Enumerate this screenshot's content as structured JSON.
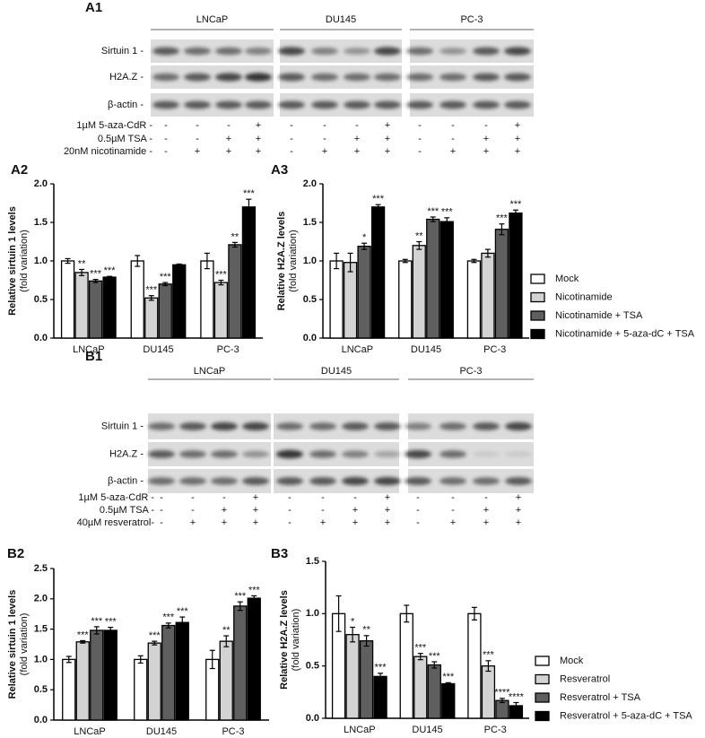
{
  "blots": [
    {
      "panel": "A1",
      "groups": [
        "LNCaP",
        "DU145",
        "PC-3"
      ],
      "bands": [
        "Sirtuin 1 -",
        "H2A.Z -",
        "β-actin -"
      ],
      "treatments": [
        {
          "label": "1µM 5-aza-CdR -",
          "signs": [
            "-",
            "-",
            "-",
            "+",
            "-",
            "-",
            "-",
            "+",
            "-",
            "-",
            "-",
            "+"
          ]
        },
        {
          "label": "0.5µM TSA -",
          "signs": [
            "-",
            "-",
            "+",
            "+",
            "-",
            "-",
            "+",
            "+",
            "-",
            "-",
            "+",
            "+"
          ]
        },
        {
          "label": "20nM nicotinamide -",
          "signs": [
            "-",
            "+",
            "+",
            "+",
            "-",
            "+",
            "+",
            "+",
            "-",
            "+",
            "+",
            "+"
          ]
        }
      ]
    },
    {
      "panel": "B1",
      "groups": [
        "LNCaP",
        "DU145",
        "PC-3"
      ],
      "bands": [
        "Sirtuin 1 -",
        "H2A.Z -",
        "β-actin -"
      ],
      "treatments": [
        {
          "label": "1µM 5-aza-CdR -",
          "signs": [
            "-",
            "-",
            "-",
            "+",
            "-",
            "-",
            "-",
            "+",
            "-",
            "-",
            "-",
            "+"
          ]
        },
        {
          "label": "0.5µM TSA -",
          "signs": [
            "-",
            "-",
            "+",
            "+",
            "-",
            "-",
            "+",
            "+",
            "-",
            "-",
            "+",
            "+"
          ]
        },
        {
          "label": "40µM resveratrol-",
          "signs": [
            "-",
            "+",
            "+",
            "+",
            "-",
            "+",
            "+",
            "+",
            "-",
            "+",
            "+",
            "+"
          ]
        }
      ]
    }
  ],
  "chart_data": [
    {
      "type": "bar",
      "panel": "A2",
      "ylabel": "Relative sirtuin 1 levels",
      "ylabel_note": "(fold variation)",
      "categories": [
        "LNCaP",
        "DU145",
        "PC-3"
      ],
      "ylim": [
        0,
        2
      ],
      "yticks": [
        {
          "value": 0,
          "label": "0.0"
        },
        0.5,
        {
          "value": 1,
          "label": "1.0"
        },
        1.5,
        {
          "value": 2,
          "label": "2.0"
        }
      ],
      "legend": false,
      "series": [
        {
          "name": "Mock",
          "color": "#ffffff",
          "values": [
            1.0,
            1.0,
            1.0
          ],
          "errors": [
            0.03,
            0.07,
            0.1
          ],
          "significance": [
            null,
            null,
            null
          ]
        },
        {
          "name": "Nicotinamide",
          "color": "#d3d3d3",
          "values": [
            0.85,
            0.52,
            0.72
          ],
          "errors": [
            0.04,
            0.03,
            0.03
          ],
          "significance": [
            "**",
            "***",
            "***"
          ]
        },
        {
          "name": "Nicotinamide + TSA",
          "color": "#5f5f5f",
          "values": [
            0.74,
            0.7,
            1.21
          ],
          "errors": [
            0.02,
            0.02,
            0.03
          ],
          "significance": [
            "***",
            "***",
            "**"
          ]
        },
        {
          "name": "Nicotinamide + 5-aza-dC + TSA",
          "color": "#000000",
          "values": [
            0.79,
            0.95,
            1.7
          ],
          "errors": [
            0.01,
            0.01,
            0.1
          ],
          "significance": [
            "***",
            null,
            "***"
          ]
        }
      ]
    },
    {
      "type": "bar",
      "panel": "A3",
      "ylabel": "Relative H2A.Z levels",
      "ylabel_note": "(fold variation)",
      "categories": [
        "LNCaP",
        "DU145",
        "PC-3"
      ],
      "ylim": [
        0,
        2
      ],
      "yticks": [
        {
          "value": 0,
          "label": "0.0"
        },
        0.5,
        {
          "value": 1,
          "label": "1.0"
        },
        1.5,
        {
          "value": 2,
          "label": "2.0"
        }
      ],
      "legend": true,
      "series": [
        {
          "name": "Mock",
          "color": "#ffffff",
          "values": [
            1.0,
            1.0,
            1.0
          ],
          "errors": [
            0.1,
            0.02,
            0.02
          ],
          "significance": [
            null,
            null,
            null
          ]
        },
        {
          "name": "Nicotinamide",
          "color": "#d3d3d3",
          "values": [
            0.98,
            1.2,
            1.1
          ],
          "errors": [
            0.12,
            0.05,
            0.05
          ],
          "significance": [
            null,
            "**",
            null
          ]
        },
        {
          "name": "Nicotinamide + TSA",
          "color": "#5f5f5f",
          "values": [
            1.19,
            1.54,
            1.41
          ],
          "errors": [
            0.04,
            0.03,
            0.07
          ],
          "significance": [
            "*",
            "***",
            "***"
          ]
        },
        {
          "name": "Nicotinamide + 5-aza-dC + TSA",
          "color": "#000000",
          "values": [
            1.7,
            1.51,
            1.62
          ],
          "errors": [
            0.03,
            0.05,
            0.04
          ],
          "significance": [
            "***",
            "***",
            "***"
          ]
        }
      ]
    },
    {
      "type": "bar",
      "panel": "B2",
      "ylabel": "Relative sirtuin 1 levels",
      "ylabel_note": "(fold variation)",
      "categories": [
        "LNCaP",
        "DU145",
        "PC-3"
      ],
      "ylim": [
        0,
        2.5
      ],
      "yticks": [
        {
          "value": 0,
          "label": "0.0"
        },
        0.5,
        {
          "value": 1,
          "label": "1.0"
        },
        1.5,
        {
          "value": 2,
          "label": "2.0"
        },
        2.5
      ],
      "legend": false,
      "series": [
        {
          "name": "Mock",
          "color": "#ffffff",
          "values": [
            1.0,
            1.0,
            1.0
          ],
          "errors": [
            0.05,
            0.06,
            0.15
          ],
          "significance": [
            null,
            null,
            null
          ]
        },
        {
          "name": "Resveratrol",
          "color": "#d3d3d3",
          "values": [
            1.29,
            1.27,
            1.3
          ],
          "errors": [
            0.02,
            0.03,
            0.09
          ],
          "significance": [
            "***",
            "***",
            "**"
          ]
        },
        {
          "name": "Resveratrol + TSA",
          "color": "#5f5f5f",
          "values": [
            1.48,
            1.56,
            1.88
          ],
          "errors": [
            0.06,
            0.04,
            0.07
          ],
          "significance": [
            "***",
            "***",
            "***"
          ]
        },
        {
          "name": "Resveratrol + 5-aza-dC + TSA",
          "color": "#000000",
          "values": [
            1.48,
            1.61,
            2.01
          ],
          "errors": [
            0.05,
            0.09,
            0.04
          ],
          "significance": [
            "***",
            "***",
            "***"
          ]
        }
      ]
    },
    {
      "type": "bar",
      "panel": "B3",
      "ylabel": "Relative H2A.Z levels",
      "ylabel_note": "(fold variation)",
      "categories": [
        "LNCaP",
        "DU145",
        "PC-3"
      ],
      "ylim": [
        0,
        1.5
      ],
      "yticks": [
        {
          "value": 0,
          "label": "0.0"
        },
        0.5,
        {
          "value": 1,
          "label": "1.0"
        },
        1.5
      ],
      "legend": true,
      "series": [
        {
          "name": "Mock",
          "color": "#ffffff",
          "values": [
            1.0,
            1.0,
            1.0
          ],
          "errors": [
            0.17,
            0.08,
            0.06
          ],
          "significance": [
            null,
            null,
            null
          ]
        },
        {
          "name": "Resveratrol",
          "color": "#d3d3d3",
          "values": [
            0.8,
            0.59,
            0.5
          ],
          "errors": [
            0.07,
            0.03,
            0.05
          ],
          "significance": [
            "*",
            "***",
            "***"
          ]
        },
        {
          "name": "Resveratrol + TSA",
          "color": "#5f5f5f",
          "values": [
            0.74,
            0.51,
            0.17
          ],
          "errors": [
            0.05,
            0.03,
            0.02
          ],
          "significance": [
            "**",
            "***",
            "****"
          ]
        },
        {
          "name": "Resveratrol + 5-aza-dC + TSA",
          "color": "#000000",
          "values": [
            0.4,
            0.33,
            0.12
          ],
          "errors": [
            0.03,
            0.01,
            0.03
          ],
          "significance": [
            "***",
            "***",
            "****"
          ]
        }
      ]
    }
  ]
}
